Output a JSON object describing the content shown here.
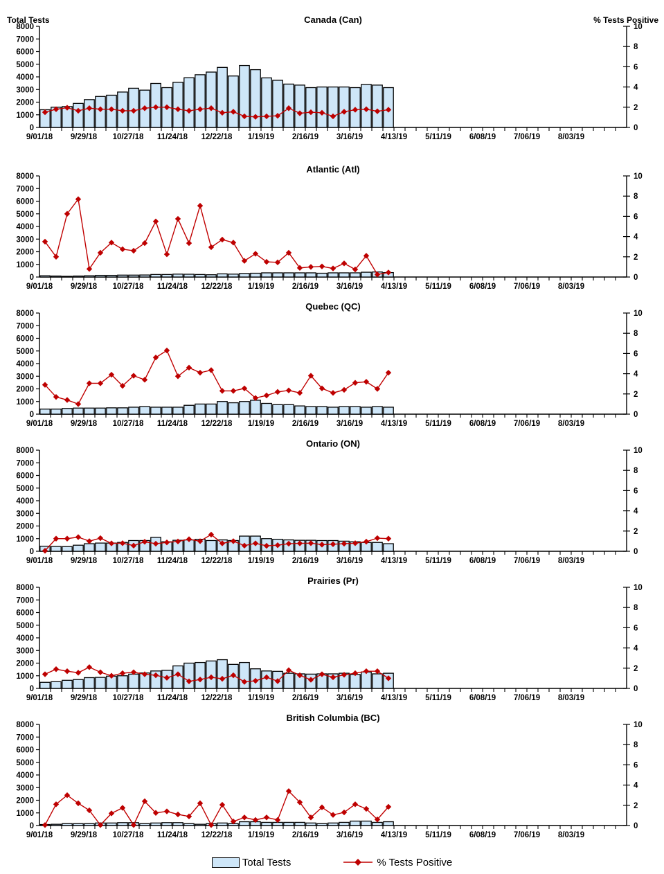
{
  "colors": {
    "bar_fill": "#CEE6F8",
    "bar_stroke": "#000000",
    "line": "#C00000",
    "marker": "#BE0000"
  },
  "legend": {
    "items": [
      {
        "label": "Total Tests",
        "swatch": "bar-swatch"
      },
      {
        "label": "% Tests Positive",
        "swatch": "line-swatch"
      }
    ]
  },
  "chart_data": {
    "type": "bar+line",
    "axes": {
      "left_title": "Total Tests",
      "right_title": "% Tests Positive",
      "left_ticks": [
        0,
        1000,
        2000,
        3000,
        4000,
        5000,
        6000,
        7000,
        8000
      ],
      "right_ticks": [
        0,
        2,
        4,
        6,
        8,
        10
      ],
      "left_range": [
        0,
        8000
      ],
      "right_range": [
        0,
        10
      ],
      "total_week_slots": 53,
      "label_every": 4,
      "grid": false
    },
    "x_label_ticks": [
      "9/01/18",
      "9/29/18",
      "10/27/18",
      "11/24/18",
      "12/22/18",
      "1/19/19",
      "2/16/19",
      "3/16/19",
      "4/13/19",
      "5/11/19",
      "6/08/19",
      "7/06/19",
      "8/03/19"
    ],
    "weeks": [
      "9/01/18",
      "9/08/18",
      "9/15/18",
      "9/22/18",
      "9/29/18",
      "10/06/18",
      "10/13/18",
      "10/20/18",
      "10/27/18",
      "11/03/18",
      "11/10/18",
      "11/17/18",
      "11/24/18",
      "12/01/18",
      "12/08/18",
      "12/15/18",
      "12/22/18",
      "12/29/18",
      "1/05/19",
      "1/12/19",
      "1/19/19",
      "1/26/19",
      "2/02/19",
      "2/09/19",
      "2/16/19",
      "2/23/19",
      "3/02/19",
      "3/09/19",
      "3/16/19",
      "3/23/19",
      "3/30/19",
      "4/06/19"
    ],
    "series_names": [
      "Total Tests",
      "% Tests Positive"
    ],
    "charts": [
      {
        "title": "Canada (Can)",
        "total_tests": [
          1400,
          1600,
          1650,
          1900,
          2200,
          2450,
          2550,
          2800,
          3100,
          2950,
          3480,
          3150,
          3570,
          3930,
          4170,
          4380,
          4750,
          4070,
          4900,
          4570,
          3920,
          3730,
          3430,
          3350,
          3150,
          3200,
          3200,
          3200,
          3150,
          3400,
          3350,
          3150
        ],
        "pct_positive": [
          1.5,
          1.8,
          1.95,
          1.65,
          1.9,
          1.8,
          1.8,
          1.65,
          1.65,
          1.9,
          2.0,
          2.0,
          1.8,
          1.65,
          1.8,
          1.9,
          1.45,
          1.55,
          1.1,
          1.05,
          1.1,
          1.15,
          1.9,
          1.4,
          1.5,
          1.45,
          1.1,
          1.55,
          1.75,
          1.8,
          1.6,
          1.75
        ]
      },
      {
        "title": "Atlantic (Atl)",
        "total_tests": [
          100,
          80,
          60,
          80,
          100,
          130,
          130,
          150,
          150,
          160,
          200,
          200,
          230,
          220,
          200,
          180,
          250,
          230,
          280,
          300,
          330,
          330,
          330,
          330,
          330,
          300,
          330,
          330,
          330,
          380,
          400,
          350
        ],
        "pct_positive": [
          3.5,
          2.0,
          6.25,
          7.7,
          0.8,
          2.4,
          3.4,
          2.75,
          2.6,
          3.35,
          5.5,
          2.25,
          5.75,
          3.35,
          7.05,
          2.95,
          3.7,
          3.4,
          1.6,
          2.3,
          1.5,
          1.45,
          2.4,
          0.9,
          1.0,
          1.05,
          0.85,
          1.35,
          0.75,
          2.1,
          0.25,
          0.45
        ]
      },
      {
        "title": "Quebec (QC)",
        "total_tests": [
          400,
          400,
          450,
          480,
          480,
          480,
          500,
          500,
          550,
          600,
          550,
          550,
          550,
          700,
          800,
          800,
          1000,
          900,
          1000,
          1100,
          850,
          750,
          750,
          650,
          600,
          600,
          550,
          600,
          600,
          550,
          600,
          550
        ],
        "pct_positive": [
          2.9,
          1.7,
          1.4,
          1.0,
          3.05,
          3.05,
          3.9,
          2.8,
          3.8,
          3.4,
          5.6,
          6.3,
          3.75,
          4.6,
          4.1,
          4.35,
          2.3,
          2.3,
          2.55,
          1.6,
          1.85,
          2.2,
          2.35,
          2.1,
          3.8,
          2.55,
          2.1,
          2.4,
          3.1,
          3.2,
          2.5,
          4.1
        ]
      },
      {
        "title": "Ontario (ON)",
        "total_tests": [
          400,
          380,
          370,
          480,
          600,
          650,
          650,
          700,
          850,
          850,
          1100,
          750,
          870,
          900,
          950,
          850,
          900,
          850,
          1200,
          1200,
          1000,
          950,
          900,
          870,
          870,
          850,
          850,
          800,
          750,
          700,
          700,
          600
        ],
        "pct_positive": [
          0.05,
          1.25,
          1.25,
          1.4,
          1.0,
          1.3,
          0.78,
          0.8,
          0.56,
          0.94,
          0.75,
          0.88,
          0.97,
          1.19,
          1.0,
          1.65,
          0.78,
          1.0,
          0.56,
          0.78,
          0.54,
          0.6,
          0.75,
          0.78,
          0.8,
          0.66,
          0.7,
          0.75,
          0.8,
          0.95,
          1.3,
          1.25
        ]
      },
      {
        "title": "Prairies (Pr)",
        "total_tests": [
          480,
          530,
          640,
          700,
          850,
          870,
          970,
          1000,
          1130,
          1220,
          1380,
          1430,
          1780,
          2000,
          2050,
          2170,
          2270,
          1900,
          2050,
          1550,
          1380,
          1350,
          1200,
          1150,
          1130,
          1150,
          1150,
          1200,
          1100,
          1300,
          1150,
          1200
        ],
        "pct_positive": [
          1.4,
          1.9,
          1.7,
          1.55,
          2.1,
          1.6,
          1.25,
          1.5,
          1.6,
          1.4,
          1.3,
          1.05,
          1.4,
          0.7,
          0.88,
          1.1,
          0.95,
          1.3,
          0.65,
          0.75,
          1.1,
          0.72,
          1.8,
          1.3,
          0.85,
          1.4,
          1.1,
          1.35,
          1.5,
          1.7,
          1.7,
          1.0
        ]
      },
      {
        "title": "British Columbia (BC)",
        "total_tests": [
          80,
          100,
          150,
          150,
          150,
          200,
          200,
          230,
          230,
          150,
          200,
          230,
          230,
          150,
          100,
          150,
          200,
          150,
          300,
          300,
          250,
          250,
          250,
          250,
          200,
          150,
          200,
          250,
          350,
          350,
          250,
          300
        ],
        "pct_positive": [
          0.05,
          2.1,
          3.0,
          2.2,
          1.5,
          0.05,
          1.2,
          1.75,
          0.05,
          2.4,
          1.25,
          1.4,
          1.1,
          0.9,
          2.2,
          0.05,
          2.05,
          0.4,
          0.8,
          0.55,
          0.8,
          0.55,
          3.4,
          2.3,
          0.8,
          1.8,
          1.05,
          1.3,
          2.1,
          1.65,
          0.6,
          1.85
        ]
      }
    ]
  }
}
